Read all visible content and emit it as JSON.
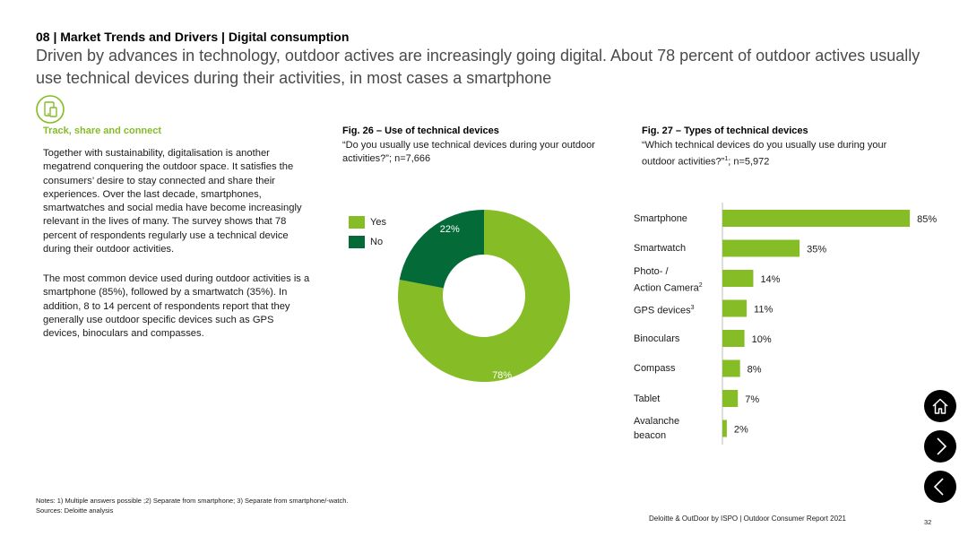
{
  "header": {
    "section_title": "08 | Market Trends and Drivers | Digital consumption",
    "headline": "Driven by advances in technology, outdoor actives are increasingly going digital. About 78 percent of outdoor actives usually use technical devices during their activities, in most cases a smartphone"
  },
  "left": {
    "icon": "devices-icon",
    "subheading": "Track, share and connect",
    "paragraph1": "Together with sustainability, digitalisation is another megatrend conquering the outdoor space. It satisfies the consumers’ desire to stay connected and share their experiences. Over the last decade, smartphones, smartwatches and social media have become increasingly relevant in the lives of many. The survey shows that 78 percent of respondents regularly use a technical device during their outdoor activities.",
    "paragraph2": "The most common device used during outdoor activities is a smartphone (85%), followed by a smartwatch (35%). In addition, 8 to 14 percent of respondents report that they generally use outdoor specific devices such as GPS devices, binoculars and compasses."
  },
  "fig26": {
    "title": "Fig. 26 – Use of technical devices",
    "subtitle": "“Do you usually use technical devices during your outdoor activities?”; n=7,666"
  },
  "fig27": {
    "title": "Fig. 27 – Types of technical devices",
    "subtitle_before": "“Which technical devices do you usually use during your outdoor activities?”",
    "subtitle_sup": "1",
    "subtitle_after": "; n=5,972"
  },
  "colors": {
    "yes": "#86bc25",
    "no": "#046a38",
    "bar": "#86bc25"
  },
  "chart_data": [
    {
      "type": "pie",
      "variant": "donut",
      "title": "Fig. 26 – Use of technical devices",
      "categories": [
        "Yes",
        "No"
      ],
      "values": [
        78,
        22
      ],
      "value_labels": [
        "78%",
        "22%"
      ],
      "legend_position": "top-left"
    },
    {
      "type": "bar",
      "orientation": "horizontal",
      "title": "Fig. 27 – Types of technical devices",
      "categories": [
        "Smartphone",
        "Smartwatch",
        "Photo- / Action Camera",
        "GPS devices",
        "Binoculars",
        "Compass",
        "Tablet",
        "Avalanche beacon"
      ],
      "category_lines": [
        [
          "Smartphone"
        ],
        [
          "Smartwatch"
        ],
        [
          "Photo- /",
          "Action Camera"
        ],
        [
          "GPS devices"
        ],
        [
          "Binoculars"
        ],
        [
          "Compass"
        ],
        [
          "Tablet"
        ],
        [
          "Avalanche",
          "beacon"
        ]
      ],
      "category_sups": [
        "",
        "",
        "2",
        "3",
        "",
        "",
        "",
        ""
      ],
      "values": [
        85,
        35,
        14,
        11,
        10,
        8,
        7,
        2
      ],
      "value_labels": [
        "85%",
        "35%",
        "14%",
        "11%",
        "10%",
        "8%",
        "7%",
        "2%"
      ],
      "xlim": [
        0,
        100
      ]
    }
  ],
  "nav": {
    "home_icon": "home-icon",
    "next_icon": "chevron-right-icon",
    "prev_icon": "chevron-left-icon"
  },
  "footer": {
    "notes": "Notes: 1) Multiple answers possible ;2) Separate from smartphone; 3) Separate from smartphone/-watch.",
    "sources": "Sources: Deloitte analysis",
    "report": "Deloitte & OutDoor by ISPO | Outdoor Consumer Report 2021",
    "page": "32"
  }
}
